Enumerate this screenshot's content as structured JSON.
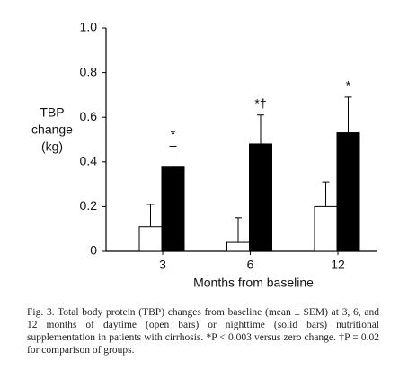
{
  "chart_data": {
    "type": "bar",
    "ylabel": [
      "TBP",
      "change",
      "(kg)"
    ],
    "xlabel": "Months from baseline",
    "categories": [
      "3",
      "6",
      "12"
    ],
    "series": [
      {
        "color": "#ffffff",
        "values": [
          0.11,
          0.04,
          0.2
        ],
        "errors": [
          0.1,
          0.11,
          0.11
        ]
      },
      {
        "color": "#000000",
        "values": [
          0.38,
          0.48,
          0.53
        ],
        "errors": [
          0.09,
          0.13,
          0.16
        ]
      }
    ],
    "annotations": [
      "*",
      "*†",
      "*"
    ],
    "ylim": [
      0,
      1
    ],
    "yticks": [
      0,
      0.2,
      0.4,
      0.6,
      0.8,
      {
        "value": 1,
        "label": "1.0"
      }
    ],
    "caption": "Fig. 3. Total body protein (TBP) changes from baseline (mean ± SEM) at 3, 6, and 12 months of daytime (open bars) or nighttime (solid bars) nutritional supplementation in patients with cirrhosis. *P < 0.003 versus zero change. †P = 0.02 for comparison of groups."
  }
}
